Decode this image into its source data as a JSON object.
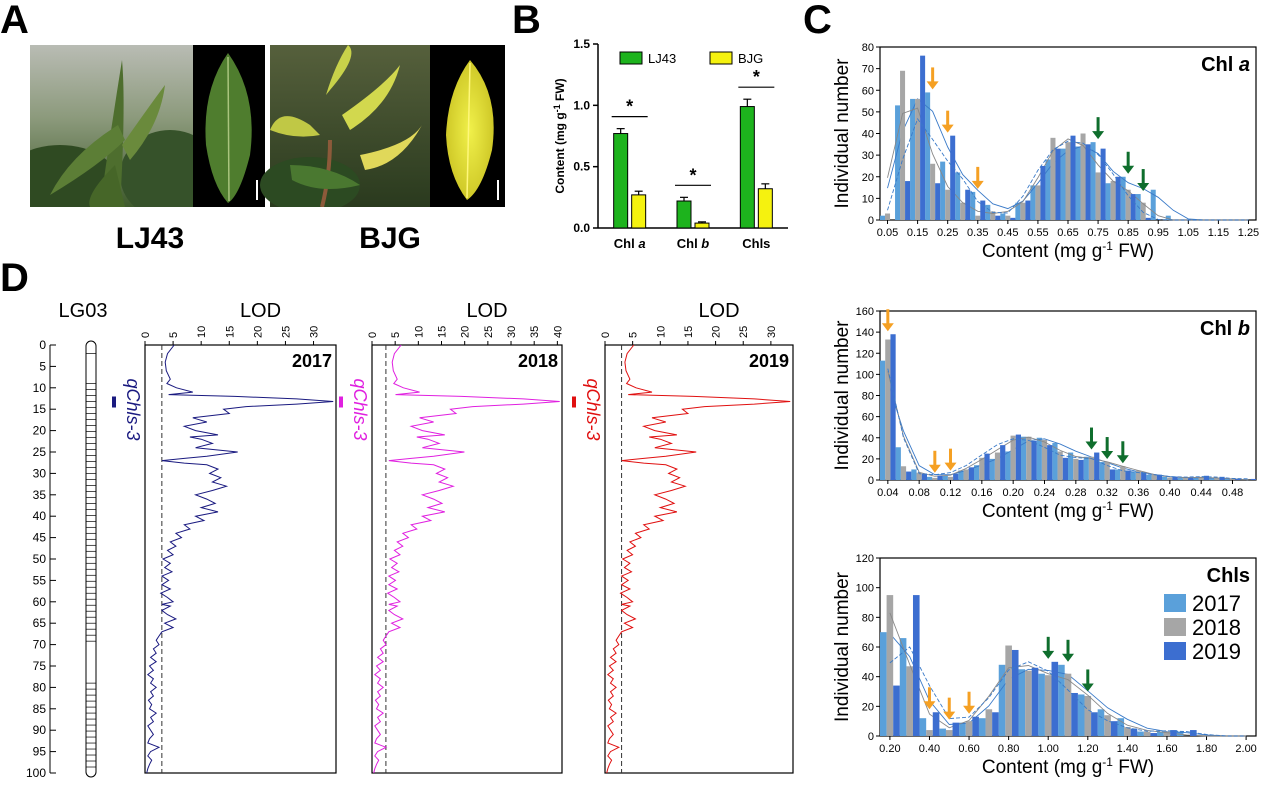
{
  "panel_letters": {
    "a": "A",
    "b": "B",
    "c": "C",
    "d": "D"
  },
  "photos": {
    "label_left": "LJ43",
    "label_right": "BJG"
  },
  "colors": {
    "lj43_green": "#1db31d",
    "bjg_yellow": "#f5f20f",
    "y2017": "#5aa0da",
    "y2018": "#a6a6a6",
    "y2019": "#3c6ed0",
    "arrow_orange": "#f5a023",
    "arrow_green": "#0f6e2d",
    "lod_2017": "#1a1a80",
    "lod_2018": "#e020e0",
    "lod_2019": "#e01010"
  },
  "chart_data": [
    {
      "id": "B",
      "type": "bar",
      "categories": [
        "Chl a",
        "Chl b",
        "Chls"
      ],
      "category_labels": [
        {
          "main": "Chl ",
          "italic": "a"
        },
        {
          "main": "Chl ",
          "italic": "b"
        },
        {
          "main": "Chls",
          "italic": ""
        }
      ],
      "series": [
        {
          "name": "LJ43",
          "values": [
            0.77,
            0.22,
            0.99
          ],
          "errors": [
            0.04,
            0.03,
            0.06
          ]
        },
        {
          "name": "BJG",
          "values": [
            0.27,
            0.04,
            0.32
          ],
          "errors": [
            0.03,
            0.01,
            0.04
          ]
        }
      ],
      "significance": [
        "*",
        "*",
        "*"
      ],
      "ylabel": "Content (mg g-1 FW)",
      "ylabel_parts": {
        "pre": "Content (mg g",
        "sup": "-1",
        "post": " FW)"
      },
      "ylim": [
        0,
        1.5
      ],
      "yticks": [
        0.0,
        0.5,
        1.0,
        1.5
      ],
      "ytick_labels": [
        "0.0",
        "0.5",
        "1.0",
        "1.5"
      ]
    },
    {
      "id": "C1",
      "type": "bar",
      "title_main": "Chl ",
      "title_italic": "a",
      "x": [
        0.05,
        0.1,
        0.15,
        0.2,
        0.25,
        0.3,
        0.35,
        0.4,
        0.45,
        0.5,
        0.55,
        0.6,
        0.65,
        0.7,
        0.75,
        0.8,
        0.85,
        0.9,
        0.95,
        1.0,
        1.05,
        1.1,
        1.15,
        1.2,
        1.25
      ],
      "series": [
        {
          "name": "2017",
          "values": [
            2,
            53,
            56,
            59,
            27,
            22,
            13,
            7,
            3,
            8,
            16,
            28,
            33,
            34,
            36,
            17,
            20,
            12,
            14,
            2,
            0,
            0,
            0,
            0,
            0
          ]
        },
        {
          "name": "2018",
          "values": [
            3,
            69,
            56,
            26,
            14,
            8,
            2,
            4,
            2,
            8,
            16,
            38,
            36,
            40,
            22,
            18,
            14,
            8,
            0,
            0,
            0,
            0,
            0,
            0,
            0
          ]
        },
        {
          "name": "2019",
          "values": [
            0,
            18,
            76,
            17,
            39,
            14,
            9,
            2,
            1,
            9,
            25,
            33,
            39,
            35,
            33,
            20,
            12,
            1,
            0,
            0,
            0,
            0,
            0,
            0,
            0
          ]
        }
      ],
      "xtick_labels": [
        "0.05",
        "0.15",
        "0.25",
        "0.35",
        "0.45",
        "0.55",
        "0.65",
        "0.75",
        "0.85",
        "0.95",
        "1.05",
        "1.15",
        "1.25"
      ],
      "xlabel_parts": {
        "pre": "Content (mg g",
        "sup": "-1",
        "post": " FW)"
      },
      "ylabel": "Individual number",
      "ylim": [
        0,
        80
      ],
      "yticks": [
        0,
        10,
        20,
        30,
        40,
        50,
        60,
        70,
        80
      ],
      "orange_arrows_at": [
        0.2,
        0.25,
        0.35
      ],
      "green_arrows_at": [
        0.75,
        0.85,
        0.9
      ]
    },
    {
      "id": "C2",
      "type": "bar",
      "title_main": "Chl ",
      "title_italic": "b",
      "x": [
        0.02,
        0.04,
        0.06,
        0.08,
        0.1,
        0.12,
        0.14,
        0.16,
        0.18,
        0.2,
        0.22,
        0.24,
        0.26,
        0.28,
        0.3,
        0.32,
        0.34,
        0.36,
        0.38,
        0.4,
        0.42,
        0.44,
        0.46,
        0.48
      ],
      "series": [
        {
          "name": "2017",
          "values": [
            113,
            31,
            10,
            3,
            4,
            9,
            14,
            20,
            27,
            41,
            40,
            35,
            26,
            22,
            17,
            10,
            8,
            5,
            3,
            2,
            2,
            2,
            1,
            0
          ]
        },
        {
          "name": "2018",
          "values": [
            133,
            13,
            7,
            2,
            3,
            10,
            21,
            26,
            42,
            41,
            38,
            27,
            20,
            22,
            17,
            13,
            9,
            5,
            2,
            2,
            3,
            2,
            1,
            0
          ]
        },
        {
          "name": "2019",
          "values": [
            138,
            8,
            6,
            4,
            6,
            12,
            25,
            33,
            43,
            37,
            33,
            21,
            19,
            26,
            10,
            9,
            7,
            5,
            3,
            2,
            4,
            3,
            1,
            1
          ]
        }
      ],
      "xtick_labels": [
        "0.04",
        "0.08",
        "0.12",
        "0.16",
        "0.20",
        "0.24",
        "0.28",
        "0.32",
        "0.36",
        "0.40",
        "0.44",
        "0.48"
      ],
      "xlabel_parts": {
        "pre": "Content (mg g",
        "sup": "-1",
        "post": " FW)"
      },
      "ylabel": "Individual number",
      "ylim": [
        0,
        160
      ],
      "yticks": [
        0,
        20,
        40,
        60,
        80,
        100,
        120,
        140,
        160
      ],
      "orange_arrows_at": [
        0.02,
        0.08,
        0.1
      ],
      "green_arrows_at": [
        0.28,
        0.3,
        0.32
      ]
    },
    {
      "id": "C3",
      "type": "bar",
      "title_main": "Chls",
      "title_italic": "",
      "x": [
        0.2,
        0.3,
        0.4,
        0.5,
        0.6,
        0.7,
        0.8,
        0.9,
        1.0,
        1.1,
        1.2,
        1.3,
        1.4,
        1.5,
        1.6,
        1.7,
        1.8,
        1.9,
        2.0
      ],
      "series": [
        {
          "name": "2017",
          "values": [
            70,
            66,
            12,
            5,
            9,
            12,
            48,
            45,
            42,
            48,
            28,
            18,
            12,
            3,
            3,
            3,
            0,
            0,
            0
          ]
        },
        {
          "name": "2018",
          "values": [
            95,
            47,
            4,
            4,
            10,
            18,
            61,
            44,
            41,
            42,
            27,
            14,
            6,
            3,
            3,
            0,
            0,
            0,
            0
          ]
        },
        {
          "name": "2019",
          "values": [
            34,
            95,
            16,
            9,
            13,
            16,
            58,
            46,
            50,
            29,
            16,
            10,
            5,
            2,
            4,
            4,
            0,
            0,
            0
          ]
        }
      ],
      "xtick_labels": [
        "0.20",
        "0.40",
        "0.60",
        "0.80",
        "1.00",
        "1.20",
        "1.40",
        "1.60",
        "1.80",
        "2.00"
      ],
      "xlabel_parts": {
        "pre": "Content (mg g",
        "sup": "-1",
        "post": " FW)"
      },
      "ylabel": "Individual number",
      "ylim": [
        0,
        120
      ],
      "yticks": [
        0,
        20,
        40,
        60,
        80,
        100,
        120
      ],
      "legend": [
        "2017",
        "2018",
        "2019"
      ],
      "orange_arrows_at": [
        0.4,
        0.5,
        0.6
      ],
      "green_arrows_at": [
        1.05,
        1.15,
        1.2
      ]
    },
    {
      "id": "D",
      "type": "line",
      "linkage_group": "LG03",
      "position_ticks": [
        0,
        5,
        10,
        15,
        20,
        25,
        30,
        35,
        40,
        45,
        50,
        55,
        60,
        65,
        70,
        75,
        80,
        85,
        90,
        95,
        100
      ],
      "qtl_label": "qChls-3",
      "threshold_lod": 3.0,
      "panels": [
        {
          "year": "2017",
          "xlabel": "LOD",
          "xticks": [
            0,
            5,
            10,
            15,
            20,
            25,
            30
          ],
          "xmax": 34,
          "peak_position": 13.2,
          "peak_lod": 33.5
        },
        {
          "year": "2018",
          "xlabel": "LOD",
          "xticks": [
            0,
            5,
            10,
            15,
            20,
            25,
            30,
            35,
            40
          ],
          "xmax": 41,
          "peak_position": 13.2,
          "peak_lod": 40.5
        },
        {
          "year": "2019",
          "xlabel": "LOD",
          "xticks": [
            0,
            5,
            10,
            15,
            20,
            25,
            30
          ],
          "xmax": 34,
          "peak_position": 13.2,
          "peak_lod": 33.5
        }
      ],
      "lod_profile": [
        [
          0,
          5.2
        ],
        [
          2,
          4.0
        ],
        [
          4,
          3.6
        ],
        [
          6,
          3.8
        ],
        [
          8,
          4.5
        ],
        [
          9,
          3.9
        ],
        [
          10,
          5.6
        ],
        [
          11,
          8.5
        ],
        [
          11.6,
          4.2
        ],
        [
          12,
          16
        ],
        [
          12.6,
          27
        ],
        [
          13.2,
          33.5
        ],
        [
          13.8,
          27
        ],
        [
          14.4,
          18
        ],
        [
          15,
          14
        ],
        [
          16,
          15
        ],
        [
          17,
          8.5
        ],
        [
          18,
          11
        ],
        [
          19,
          7
        ],
        [
          20,
          9
        ],
        [
          21,
          13
        ],
        [
          21.5,
          8
        ],
        [
          22,
          10
        ],
        [
          23,
          12
        ],
        [
          24,
          9
        ],
        [
          25,
          16.5
        ],
        [
          26,
          11
        ],
        [
          26.5,
          7
        ],
        [
          27,
          3.0
        ],
        [
          27.6,
          7
        ],
        [
          28,
          11
        ],
        [
          29,
          13
        ],
        [
          30,
          11.5
        ],
        [
          31,
          13.5
        ],
        [
          32,
          12
        ],
        [
          33,
          14.5
        ],
        [
          34,
          12
        ],
        [
          35,
          9
        ],
        [
          36,
          11
        ],
        [
          37,
          12.5
        ],
        [
          38,
          10
        ],
        [
          39,
          13
        ],
        [
          40,
          9
        ],
        [
          41,
          10.5
        ],
        [
          42,
          7
        ],
        [
          43,
          8
        ],
        [
          44,
          5.5
        ],
        [
          45,
          6.5
        ],
        [
          46,
          4.5
        ],
        [
          47,
          5.5
        ],
        [
          48,
          4
        ],
        [
          49,
          5
        ],
        [
          50,
          3.2
        ],
        [
          51,
          4.5
        ],
        [
          52,
          3.5
        ],
        [
          53,
          4.8
        ],
        [
          54,
          3
        ],
        [
          55,
          4.2
        ],
        [
          56,
          3
        ],
        [
          57,
          4.5
        ],
        [
          58,
          2.8
        ],
        [
          59,
          4
        ],
        [
          60,
          5
        ],
        [
          60.6,
          3
        ],
        [
          61,
          4.5
        ],
        [
          62,
          3
        ],
        [
          63,
          4
        ],
        [
          64,
          5.5
        ],
        [
          65,
          3.5
        ],
        [
          66,
          5
        ],
        [
          67,
          3
        ],
        [
          68,
          2.5
        ],
        [
          69,
          2
        ],
        [
          70,
          2.5
        ],
        [
          71,
          1.5
        ],
        [
          72,
          2
        ],
        [
          73,
          1
        ],
        [
          74,
          2
        ],
        [
          75,
          0.8
        ],
        [
          76,
          1.5
        ],
        [
          77,
          0.5
        ],
        [
          78,
          1.5
        ],
        [
          79,
          1
        ],
        [
          80,
          2
        ],
        [
          81,
          1
        ],
        [
          82,
          1.5
        ],
        [
          83,
          0.6
        ],
        [
          84,
          1.2
        ],
        [
          85,
          0.8
        ],
        [
          86,
          2
        ],
        [
          87,
          1
        ],
        [
          88,
          1.5
        ],
        [
          89,
          0.5
        ],
        [
          90,
          1
        ],
        [
          91,
          1.5
        ],
        [
          92,
          0.8
        ],
        [
          93,
          0.5
        ],
        [
          94,
          2.5
        ],
        [
          95,
          1
        ],
        [
          96,
          0.5
        ],
        [
          97,
          1.2
        ],
        [
          98,
          0.8
        ],
        [
          99,
          0.5
        ],
        [
          100,
          0.3
        ]
      ]
    }
  ]
}
